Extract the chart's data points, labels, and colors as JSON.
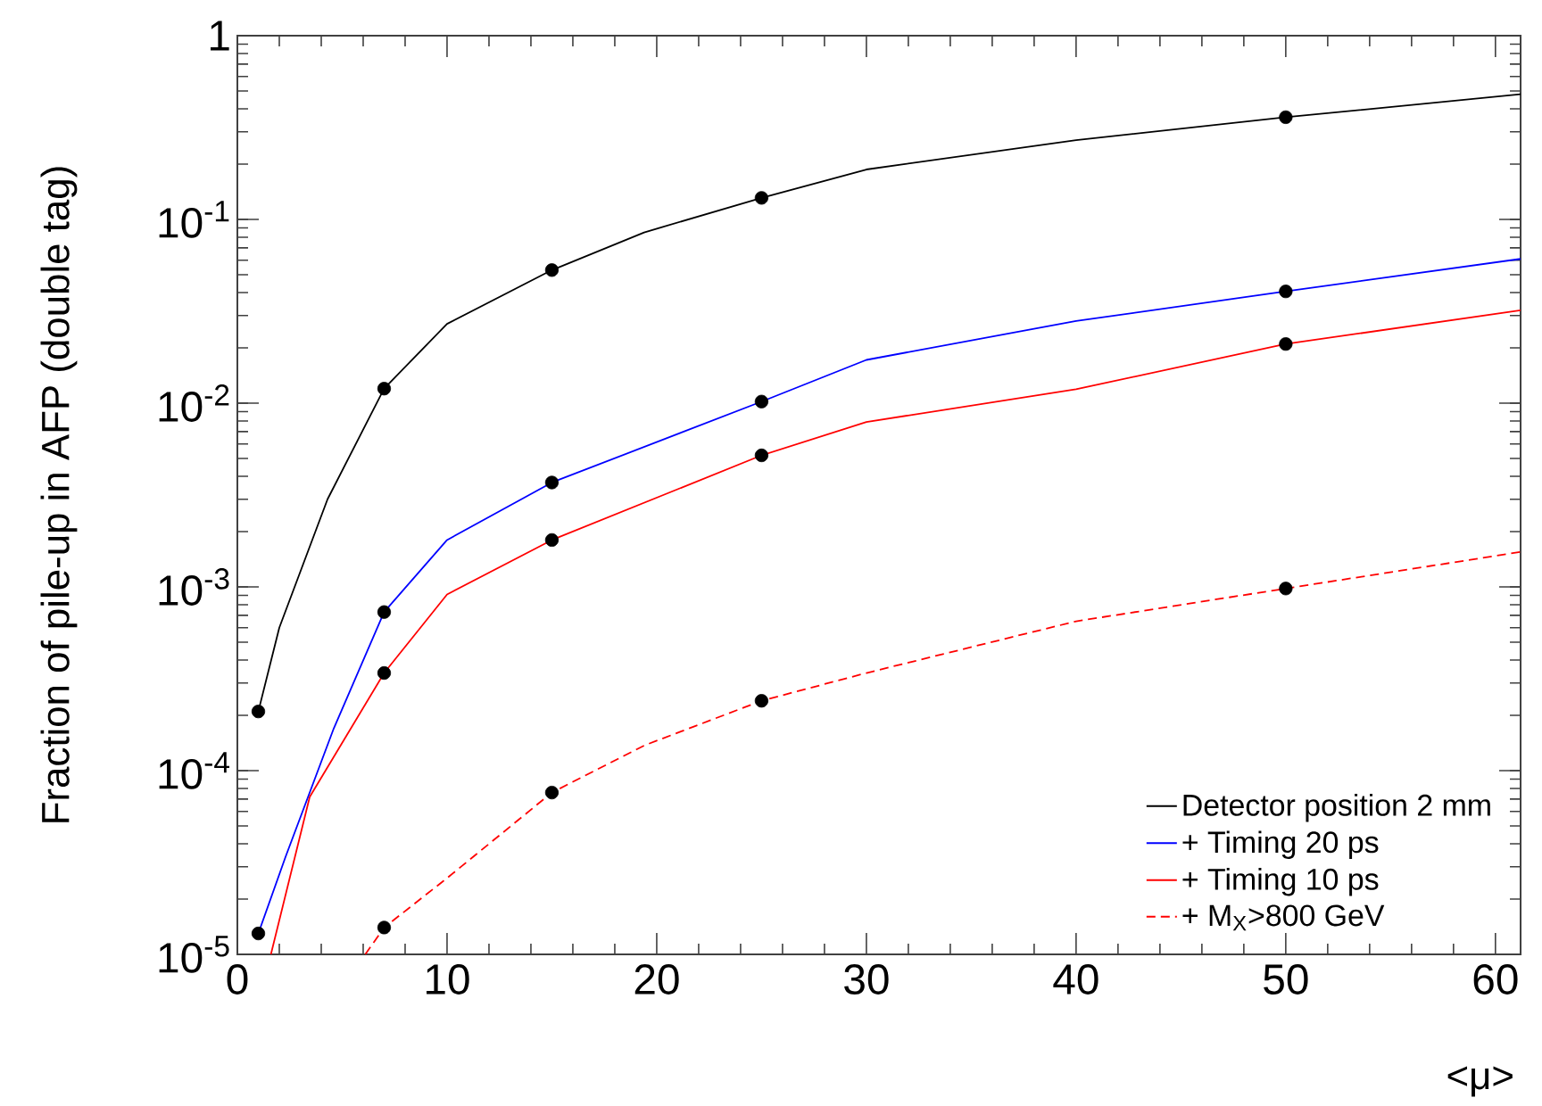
{
  "chart_data": {
    "type": "line",
    "xlabel": "<μ>",
    "ylabel": "Fraction of pile-up in AFP (double tag)",
    "log": "y",
    "grid": false,
    "legend": "bottom right",
    "xlim": [
      0,
      61.2
    ],
    "ylim": [
      1e-05,
      1
    ],
    "xticks": [
      0,
      10,
      20,
      30,
      40,
      50,
      60
    ],
    "yticks": [
      {
        "value": 1e-05,
        "label": "10$^{-5}$"
      },
      {
        "value": 0.0001,
        "label": "10$^{-4}$"
      },
      {
        "value": 0.001,
        "label": "10$^{-3}$"
      },
      {
        "value": 0.01,
        "label": "10$^{-2}$"
      },
      {
        "value": 0.1,
        "label": "10$^{-1}$"
      },
      1
    ],
    "series": [
      {
        "name": "Detector position 2 mm",
        "color": "#000000",
        "line_style": "solid",
        "x": [
          1,
          2,
          4.3,
          7,
          10,
          15,
          19.4,
          25,
          30,
          40,
          50,
          61.2
        ],
        "values": [
          0.00021,
          0.0006,
          0.003,
          0.012,
          0.027,
          0.053,
          0.085,
          0.131,
          0.187,
          0.27,
          0.36,
          0.48
        ]
      },
      {
        "name": "+ Timing 20 ps",
        "color": "#0000ff",
        "line_style": "solid",
        "x": [
          1,
          2.3,
          4.6,
          7,
          10,
          15,
          25,
          30,
          40,
          50,
          61.2
        ],
        "values": [
          1.3e-05,
          3.4e-05,
          0.00017,
          0.00073,
          0.0018,
          0.0037,
          0.0102,
          0.0172,
          0.028,
          0.0406,
          0.061
        ]
      },
      {
        "name": "+ Timing 10 ps",
        "color": "#ff0000",
        "line_style": "solid",
        "x": [
          1.6,
          3.45,
          7,
          10,
          15,
          25,
          30,
          40,
          50,
          61.2
        ],
        "values": [
          1e-05,
          7.2e-05,
          0.00034,
          0.00091,
          0.0018,
          0.0052,
          0.0079,
          0.0119,
          0.021,
          0.032
        ]
      },
      {
        "name": "+ M$_{X}$>800 GeV",
        "color": "#ff0000",
        "line_style": "dashed",
        "x": [
          6.1,
          7,
          10,
          15,
          19.4,
          25,
          30,
          40,
          50,
          61.2
        ],
        "values": [
          1e-05,
          1.4e-05,
          2.6e-05,
          7.6e-05,
          0.000137,
          0.00024,
          0.00034,
          0.00065,
          0.00098,
          0.00155
        ]
      },
      {
        "type": "scatter",
        "marker": "circle",
        "color": "#000000",
        "x": [
          1,
          7,
          15,
          25,
          50
        ],
        "values": [
          0.00021,
          0.012,
          0.053,
          0.131,
          0.36
        ]
      },
      {
        "type": "scatter",
        "marker": "circle",
        "color": "#000000",
        "x": [
          1,
          7,
          15,
          25,
          50
        ],
        "values": [
          1.3e-05,
          0.00073,
          0.0037,
          0.0102,
          0.0406
        ]
      },
      {
        "type": "scatter",
        "marker": "circle",
        "color": "#000000",
        "x": [
          7,
          15,
          25,
          50
        ],
        "values": [
          0.00034,
          0.0018,
          0.0052,
          0.021
        ]
      },
      {
        "type": "scatter",
        "marker": "circle",
        "color": "#000000",
        "x": [
          7,
          15,
          25,
          50
        ],
        "values": [
          1.4e-05,
          7.6e-05,
          0.00024,
          0.00098
        ]
      }
    ]
  }
}
